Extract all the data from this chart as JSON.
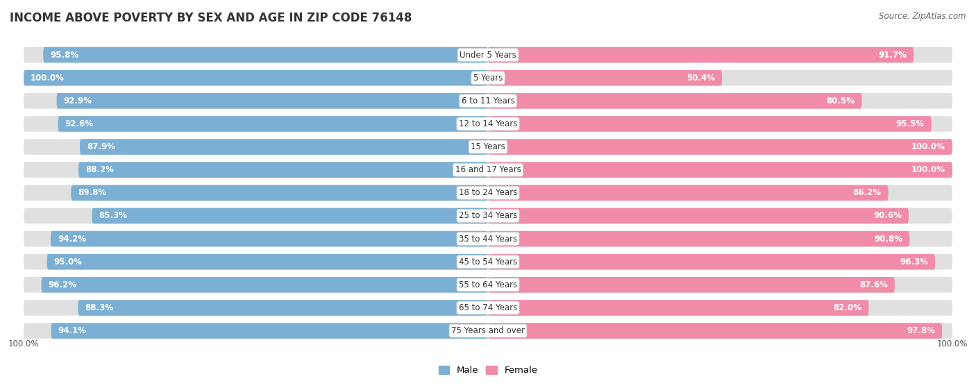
{
  "title": "INCOME ABOVE POVERTY BY SEX AND AGE IN ZIP CODE 76148",
  "source": "Source: ZipAtlas.com",
  "categories": [
    "Under 5 Years",
    "5 Years",
    "6 to 11 Years",
    "12 to 14 Years",
    "15 Years",
    "16 and 17 Years",
    "18 to 24 Years",
    "25 to 34 Years",
    "35 to 44 Years",
    "45 to 54 Years",
    "55 to 64 Years",
    "65 to 74 Years",
    "75 Years and over"
  ],
  "male_values": [
    95.8,
    100.0,
    92.9,
    92.6,
    87.9,
    88.2,
    89.8,
    85.3,
    94.2,
    95.0,
    96.2,
    88.3,
    94.1
  ],
  "female_values": [
    91.7,
    50.4,
    80.5,
    95.5,
    100.0,
    100.0,
    86.2,
    90.6,
    90.8,
    96.3,
    87.6,
    82.0,
    97.8
  ],
  "male_color": "#7BAFD4",
  "female_color": "#F08CA8",
  "male_label": "Male",
  "female_label": "Female",
  "background_color": "#ffffff",
  "bar_background": "#E0E0E0",
  "title_fontsize": 12,
  "source_fontsize": 8.5,
  "value_fontsize": 8.5,
  "category_fontsize": 8.5
}
